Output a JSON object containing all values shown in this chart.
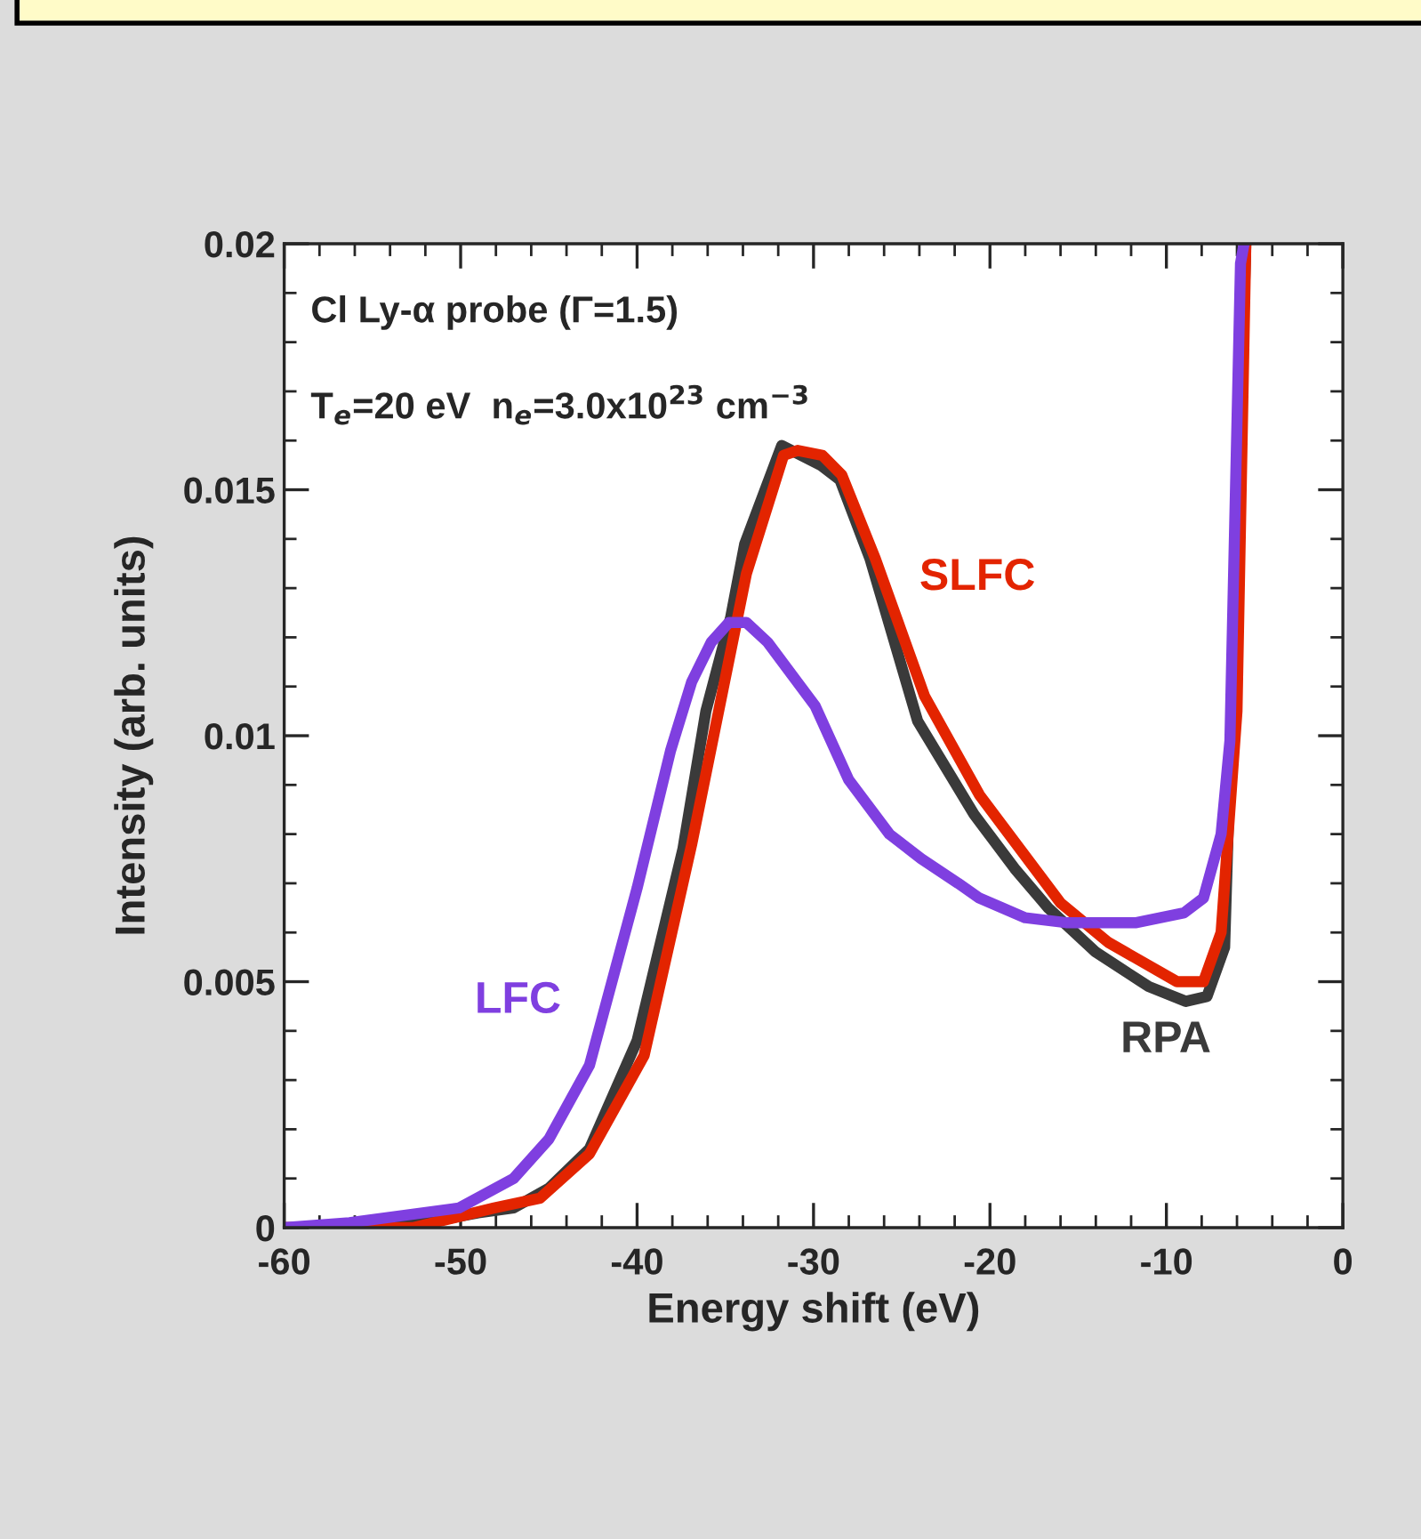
{
  "chart_data": {
    "type": "line",
    "xlabel": "Energy shift (eV)",
    "ylabel": "Intensity (arb. units)",
    "annotations": [
      "Cl Ly-α probe (Γ=1.5)",
      "T$_{e}$=20 eV  n$_{e}$=3.0x10$^{23}$ cm$^{−3}$"
    ],
    "xlim": [
      -60,
      0
    ],
    "xticks": [
      -60,
      -50,
      -40,
      -30,
      -20,
      -10,
      0
    ],
    "ylim": [
      0,
      0.02
    ],
    "yticks": [
      0,
      0.005,
      0.01,
      0.015,
      0.02
    ],
    "grid": false,
    "legend": false,
    "marker": "none",
    "line_style": "solid",
    "series": [
      {
        "name": "RPA",
        "color": "#3a3a3a",
        "x": [
          -60,
          -56,
          -52,
          -49,
          -47,
          -45,
          -42.7,
          -40,
          -37.4,
          -36.1,
          -34.7,
          -33.9,
          -31.8,
          -29.6,
          -28.5,
          -26.8,
          -24.1,
          -20.9,
          -18.6,
          -16.7,
          -14,
          -11,
          -8.9,
          -7.7,
          -6.7,
          -6,
          -5.5
        ],
        "values": [
          0,
          0,
          0.0001,
          0.0003,
          0.0004,
          0.0008,
          0.0016,
          0.0038,
          0.0077,
          0.0105,
          0.0124,
          0.0139,
          0.0159,
          0.0155,
          0.0152,
          0.0136,
          0.0103,
          0.0084,
          0.0073,
          0.0065,
          0.0056,
          0.0049,
          0.0046,
          0.0047,
          0.0057,
          null,
          0.02
        ]
      },
      {
        "name": "SLFC",
        "color": "#e32400",
        "x": [
          -60,
          -52.7,
          -48.1,
          -45.5,
          -42.7,
          -39.6,
          -36.9,
          -33.8,
          -31.7,
          -30.9,
          -29.5,
          -28.4,
          -26.5,
          -23.7,
          -20.6,
          -16,
          -13.3,
          -9.4,
          -7.9,
          -6.9,
          -6,
          -5.5
        ],
        "values": [
          0,
          0,
          0.0004,
          0.0006,
          0.0015,
          0.0035,
          0.0078,
          0.0133,
          0.0157,
          0.0158,
          0.0157,
          0.0153,
          0.0136,
          0.0108,
          0.0088,
          0.0066,
          0.0058,
          0.005,
          0.005,
          0.006,
          0.0105,
          0.02
        ]
      },
      {
        "name": "LFC",
        "color": "#7f3fe0",
        "x": [
          -60,
          -56.3,
          -50.1,
          -47,
          -45,
          -42.7,
          -40,
          -38.1,
          -36.9,
          -35.8,
          -34.8,
          -33.8,
          -32.6,
          -29.9,
          -28,
          -25.7,
          -23.9,
          -21.8,
          -20.6,
          -18,
          -15.7,
          -11.7,
          -9,
          -7.9,
          -6.9,
          -6.4,
          -5.8,
          -5.6
        ],
        "values": [
          0,
          0.0001,
          0.0004,
          0.001,
          0.0018,
          0.0033,
          0.0069,
          0.0097,
          0.0111,
          0.0119,
          0.0123,
          0.0123,
          0.0119,
          0.0106,
          0.0091,
          0.008,
          0.0075,
          0.007,
          0.0067,
          0.0063,
          0.0062,
          0.0062,
          0.0064,
          0.0067,
          0.008,
          0.0099,
          0.0196,
          0.02
        ]
      }
    ]
  }
}
